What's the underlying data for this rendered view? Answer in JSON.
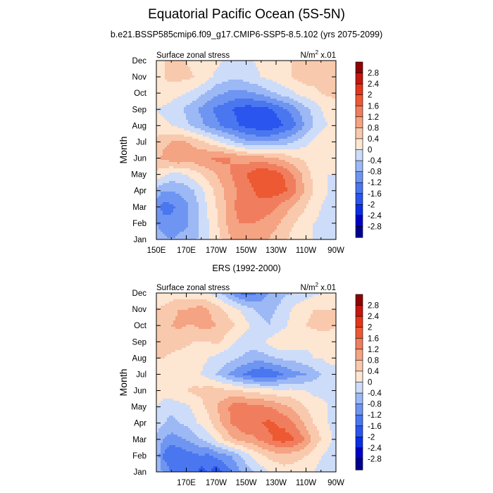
{
  "figure": {
    "title": "Equatorial Pacific Ocean (5S-5N)",
    "colors": {
      "levels": [
        -2.8,
        -2.4,
        -2.0,
        -1.6,
        -1.2,
        -0.8,
        -0.4,
        0,
        0.4,
        0.8,
        1.2,
        1.6,
        2.0,
        2.4,
        2.8
      ],
      "palette": [
        "#00008e",
        "#0000c8",
        "#0a2de6",
        "#2a55ee",
        "#4a76f0",
        "#6f95f2",
        "#9cb8f5",
        "#cddcf8",
        "#fde6d2",
        "#f9c9ad",
        "#f4a383",
        "#f07e5e",
        "#ec5933",
        "#e4351b",
        "#c5160f",
        "#8d0303"
      ],
      "colorbar_ticks": [
        "2.8",
        "2.4",
        "2",
        "1.6",
        "1.2",
        "0.8",
        "0.4",
        "0",
        "-0.4",
        "-0.8",
        "-1.2",
        "-1.6",
        "-2",
        "-2.4",
        "-2.8"
      ]
    }
  },
  "chart_data": [
    {
      "type": "heatmap",
      "title": "b.e21.BSSP585cmip6.f09_g17.CMIP6-SSP5-8.5.102 (yrs 2075-2099)",
      "left_string": "Surface zonal stress",
      "right_string": "N/m",
      "right_string_sup": "2",
      "right_string_suffix": " x.01",
      "ylabel": "Month",
      "x_ticks": [
        "150E",
        "170E",
        "170W",
        "150W",
        "130W",
        "110W",
        "90W"
      ],
      "y_ticks": [
        "Jan",
        "Feb",
        "Mar",
        "Apr",
        "May",
        "Jun",
        "Jul",
        "Aug",
        "Sep",
        "Oct",
        "Nov",
        "Dec"
      ],
      "xlim": [
        150,
        270
      ],
      "x_values": [
        150,
        155,
        160,
        165,
        170,
        175,
        180,
        185,
        190,
        195,
        200,
        205,
        210,
        215,
        220,
        225,
        230,
        235,
        240,
        245,
        250,
        255,
        260,
        265,
        270
      ],
      "grid": [
        [
          -0.6,
          -0.7,
          -0.8,
          -0.7,
          -0.6,
          -0.5,
          -0.3,
          0.0,
          0.2,
          0.5,
          0.8,
          0.9,
          1.0,
          1.0,
          0.9,
          0.8,
          0.6,
          0.5,
          0.3,
          0.2,
          0.1,
          0.0,
          -0.1,
          -0.2,
          -0.2
        ],
        [
          -0.8,
          -1.0,
          -1.1,
          -1.0,
          -0.9,
          -0.6,
          -0.3,
          0.0,
          0.3,
          0.7,
          1.0,
          1.2,
          1.2,
          1.2,
          1.1,
          1.0,
          0.9,
          0.7,
          0.5,
          0.3,
          0.2,
          0.0,
          -0.1,
          -0.2,
          -0.2
        ],
        [
          -0.9,
          -1.4,
          -1.3,
          -1.1,
          -0.9,
          -0.6,
          -0.3,
          0.1,
          0.4,
          0.7,
          1.1,
          1.3,
          1.4,
          1.5,
          1.5,
          1.4,
          1.2,
          1.0,
          0.8,
          0.6,
          0.4,
          0.2,
          0.0,
          -0.1,
          -0.2
        ],
        [
          -0.6,
          -0.8,
          -0.8,
          -0.7,
          -0.6,
          -0.4,
          -0.1,
          0.2,
          0.5,
          0.8,
          1.0,
          1.3,
          1.4,
          1.6,
          1.7,
          1.8,
          1.8,
          1.7,
          1.5,
          1.1,
          0.7,
          0.4,
          0.1,
          0.0,
          -0.1
        ],
        [
          0.3,
          0.1,
          -0.1,
          -0.1,
          0.0,
          0.2,
          0.4,
          0.6,
          0.8,
          1.0,
          1.2,
          1.4,
          1.6,
          1.8,
          2.0,
          1.9,
          1.8,
          1.6,
          1.3,
          1.0,
          0.6,
          0.3,
          0.1,
          0.0,
          0.0
        ],
        [
          0.7,
          0.9,
          1.0,
          1.2,
          1.1,
          1.0,
          1.2,
          1.2,
          1.3,
          1.3,
          1.2,
          1.1,
          1.0,
          1.0,
          1.0,
          0.9,
          0.8,
          0.7,
          0.5,
          0.4,
          0.3,
          0.2,
          0.1,
          0.0,
          0.0
        ],
        [
          0.5,
          0.7,
          0.8,
          0.8,
          0.8,
          0.7,
          0.5,
          0.3,
          0.1,
          -0.1,
          -0.3,
          -0.5,
          -0.7,
          -0.8,
          -0.8,
          -0.8,
          -0.7,
          -0.6,
          -0.5,
          -0.3,
          -0.1,
          0.1,
          0.2,
          0.3,
          0.3
        ],
        [
          0.2,
          0.1,
          0.0,
          -0.1,
          -0.3,
          -0.5,
          -0.7,
          -0.9,
          -1.1,
          -1.3,
          -1.4,
          -1.6,
          -1.7,
          -1.8,
          -1.9,
          -1.9,
          -1.8,
          -1.6,
          -1.4,
          -1.1,
          -0.7,
          -0.4,
          -0.1,
          0.0,
          0.0
        ],
        [
          0.0,
          -0.1,
          -0.2,
          -0.3,
          -0.5,
          -0.7,
          -0.9,
          -1.1,
          -1.3,
          -1.4,
          -1.6,
          -1.7,
          -1.8,
          -1.8,
          -1.8,
          -1.7,
          -1.5,
          -1.3,
          -1.1,
          -0.8,
          -0.5,
          -0.3,
          0.0,
          0.1,
          0.2
        ],
        [
          0.3,
          0.3,
          0.2,
          0.1,
          0.0,
          -0.1,
          -0.3,
          -0.5,
          -0.7,
          -0.8,
          -0.9,
          -0.9,
          -0.9,
          -0.8,
          -0.7,
          -0.5,
          -0.4,
          -0.2,
          -0.1,
          0.1,
          0.2,
          0.3,
          0.4,
          0.5,
          0.5
        ],
        [
          0.4,
          0.4,
          0.5,
          0.5,
          0.5,
          0.4,
          0.3,
          0.1,
          -0.1,
          -0.2,
          -0.3,
          -0.3,
          -0.2,
          -0.1,
          0.0,
          0.1,
          0.2,
          0.3,
          0.4,
          0.5,
          0.6,
          0.5,
          0.6,
          0.7,
          0.7
        ],
        [
          0.3,
          0.4,
          0.4,
          0.4,
          0.4,
          0.3,
          0.3,
          0.2,
          0.1,
          0.0,
          -0.1,
          -0.1,
          0.0,
          0.0,
          0.1,
          0.2,
          0.3,
          0.3,
          0.4,
          0.5,
          0.6,
          0.6,
          0.6,
          0.7,
          0.7
        ]
      ]
    },
    {
      "type": "heatmap",
      "title": "ERS (1992-2000)",
      "left_string": "Surface zonal stress",
      "right_string": "N/m",
      "right_string_sup": "2",
      "right_string_suffix": " x.01",
      "ylabel": "Month",
      "x_ticks": [
        "170E",
        "170W",
        "150W",
        "130W",
        "110W",
        "90W"
      ],
      "y_ticks": [
        "Jan",
        "Feb",
        "Mar",
        "Apr",
        "May",
        "Jun",
        "Jul",
        "Aug",
        "Sep",
        "Oct",
        "Nov",
        "Dec"
      ],
      "xlim": [
        150,
        270
      ],
      "x_values": [
        150,
        155,
        160,
        165,
        170,
        175,
        180,
        185,
        190,
        195,
        200,
        205,
        210,
        215,
        220,
        225,
        230,
        235,
        240,
        245,
        250,
        255,
        260,
        265,
        270
      ],
      "grid": [
        [
          -0.4,
          -0.9,
          -1.2,
          -1.4,
          -1.3,
          -1.4,
          -1.8,
          -1.5,
          -1.9,
          -1.5,
          -1.2,
          -0.9,
          -0.6,
          -0.4,
          -0.2,
          0.0,
          0.1,
          0.2,
          0.2,
          0.2,
          0.1,
          0.0,
          -0.1,
          -0.1,
          -0.2
        ],
        [
          -0.5,
          -1.3,
          -1.6,
          -1.5,
          -1.4,
          -1.3,
          -1.2,
          -1.3,
          -1.1,
          -0.9,
          -0.8,
          -0.5,
          -0.2,
          0.1,
          0.3,
          0.5,
          0.6,
          0.7,
          0.6,
          0.5,
          0.4,
          0.2,
          0.0,
          -0.1,
          -0.2
        ],
        [
          -0.5,
          -0.8,
          -1.0,
          -0.9,
          -0.8,
          -0.6,
          -0.4,
          -0.2,
          0.1,
          0.4,
          0.7,
          0.9,
          1.0,
          1.1,
          1.3,
          1.5,
          1.7,
          1.8,
          1.7,
          1.5,
          1.1,
          0.7,
          0.4,
          0.1,
          -0.1
        ],
        [
          -0.2,
          -0.4,
          -0.5,
          -0.4,
          -0.3,
          -0.1,
          0.1,
          0.3,
          0.6,
          0.9,
          1.2,
          1.4,
          1.6,
          1.5,
          1.6,
          1.7,
          1.6,
          1.5,
          1.3,
          1.0,
          0.7,
          0.4,
          0.2,
          0.0,
          -0.1
        ],
        [
          0.0,
          -0.2,
          -0.3,
          -0.2,
          -0.1,
          0.1,
          0.3,
          0.5,
          0.8,
          1.0,
          1.3,
          1.5,
          1.4,
          1.3,
          1.3,
          1.2,
          1.1,
          0.9,
          0.8,
          0.6,
          0.4,
          0.2,
          0.1,
          0.0,
          0.0
        ],
        [
          0.3,
          0.2,
          0.3,
          0.4,
          0.4,
          0.5,
          0.5,
          0.6,
          0.6,
          0.5,
          0.5,
          0.4,
          0.3,
          0.3,
          0.2,
          0.2,
          0.1,
          0.1,
          0.1,
          0.0,
          0.0,
          -0.1,
          -0.1,
          -0.1,
          -0.1
        ],
        [
          0.4,
          0.3,
          0.3,
          0.2,
          0.2,
          0.1,
          0.0,
          -0.2,
          -0.4,
          -0.6,
          -0.9,
          -1.1,
          -1.3,
          -1.5,
          -1.6,
          -1.6,
          -1.4,
          -1.2,
          -1.0,
          -0.9,
          -0.8,
          -0.6,
          -0.4,
          -0.2,
          -0.1
        ],
        [
          0.4,
          0.4,
          0.3,
          0.3,
          0.2,
          0.2,
          0.1,
          0.0,
          -0.1,
          -0.2,
          -0.3,
          -0.4,
          -0.5,
          -0.6,
          -0.6,
          -0.5,
          -0.4,
          -0.3,
          -0.3,
          -0.2,
          -0.1,
          0.0,
          0.0,
          0.1,
          0.1
        ],
        [
          0.5,
          0.6,
          0.6,
          0.5,
          0.5,
          0.4,
          0.4,
          0.4,
          0.5,
          0.3,
          0.1,
          -0.1,
          -0.2,
          -0.2,
          -0.1,
          0.1,
          0.3,
          0.4,
          0.3,
          0.2,
          0.1,
          0.1,
          0.2,
          0.2,
          0.2
        ],
        [
          0.6,
          0.7,
          0.8,
          0.9,
          0.8,
          0.8,
          0.9,
          0.9,
          0.8,
          0.7,
          0.5,
          0.3,
          0.1,
          -0.1,
          -0.3,
          -0.4,
          -0.3,
          -0.1,
          0.1,
          0.3,
          0.4,
          0.5,
          0.5,
          0.5,
          0.4
        ],
        [
          0.4,
          0.5,
          0.6,
          0.8,
          0.8,
          0.9,
          1.0,
          0.8,
          0.6,
          0.4,
          0.2,
          0.0,
          -0.2,
          -0.4,
          -0.5,
          -0.5,
          -0.4,
          -0.2,
          0.0,
          0.2,
          0.3,
          0.4,
          0.4,
          0.4,
          0.4
        ],
        [
          0.0,
          0.1,
          0.2,
          0.2,
          0.2,
          0.1,
          0.1,
          0.0,
          -0.2,
          -0.5,
          -0.8,
          -1.2,
          -1.4,
          -1.3,
          -1.1,
          -0.8,
          -0.6,
          -0.5,
          -0.4,
          -0.3,
          -0.2,
          -0.1,
          0.0,
          0.0,
          0.0
        ]
      ]
    }
  ]
}
